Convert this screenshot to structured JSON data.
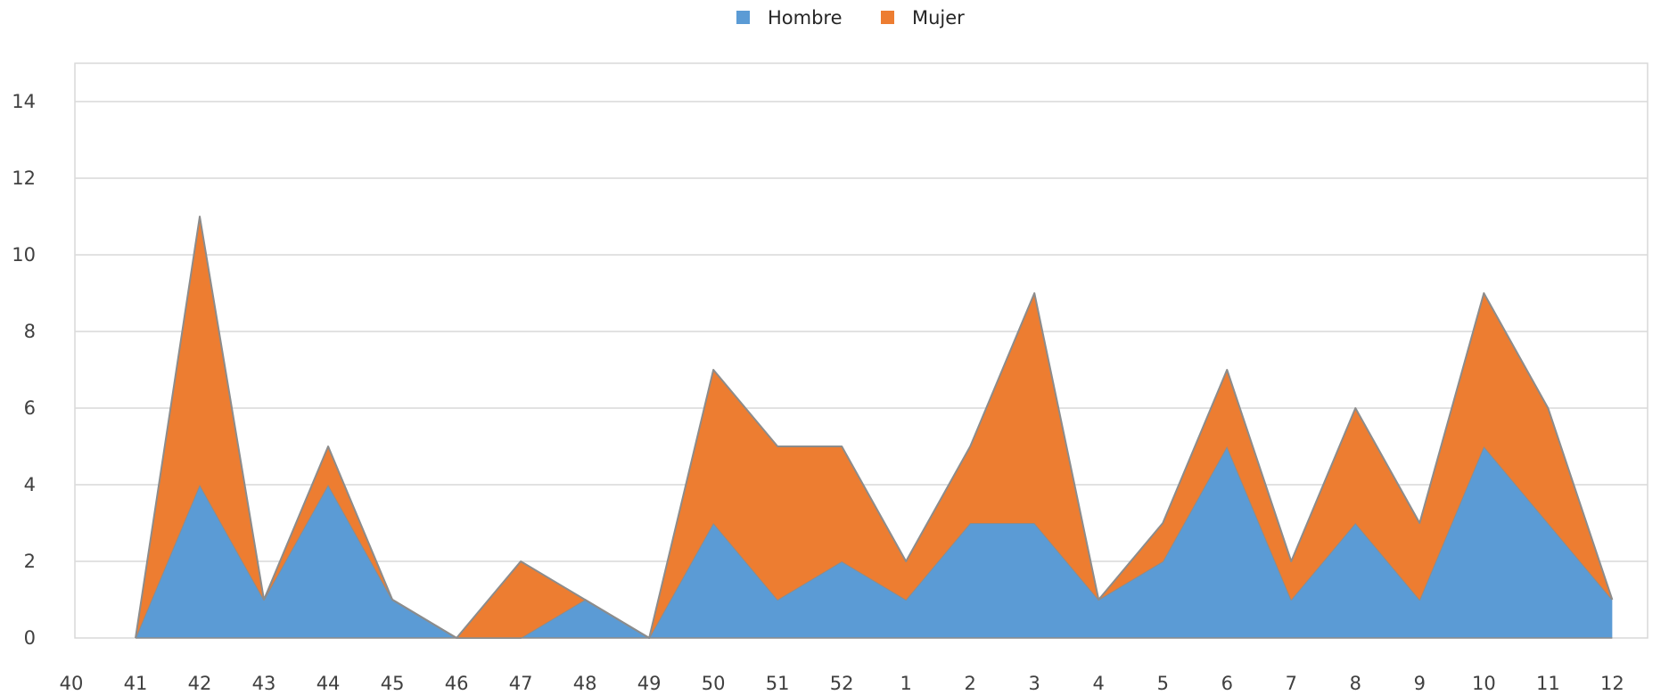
{
  "chart_data": {
    "type": "area",
    "stacked": true,
    "categories": [
      "40",
      "41",
      "42",
      "43",
      "44",
      "45",
      "46",
      "47",
      "48",
      "49",
      "50",
      "51",
      "52",
      "1",
      "2",
      "3",
      "4",
      "5",
      "6",
      "7",
      "8",
      "9",
      "10",
      "11",
      "12"
    ],
    "series": [
      {
        "name": "Hombre",
        "color": "#5b9bd5",
        "values": [
          null,
          0,
          4,
          1,
          4,
          1,
          0,
          0,
          1,
          0,
          3,
          1,
          2,
          1,
          3,
          3,
          1,
          2,
          5,
          1,
          3,
          1,
          5,
          3,
          1
        ]
      },
      {
        "name": "Mujer",
        "color": "#ed7d31",
        "values": [
          null,
          0,
          7,
          0,
          1,
          0,
          0,
          2,
          0,
          0,
          4,
          4,
          3,
          1,
          2,
          6,
          0,
          1,
          2,
          1,
          3,
          2,
          4,
          3,
          0
        ]
      }
    ],
    "ylim": [
      0,
      15
    ],
    "yticks": [
      "0",
      "2",
      "4",
      "6",
      "8",
      "10",
      "12",
      "14"
    ],
    "grid": true,
    "legend_position": "top",
    "xlabel": "",
    "ylabel": "",
    "title": ""
  }
}
